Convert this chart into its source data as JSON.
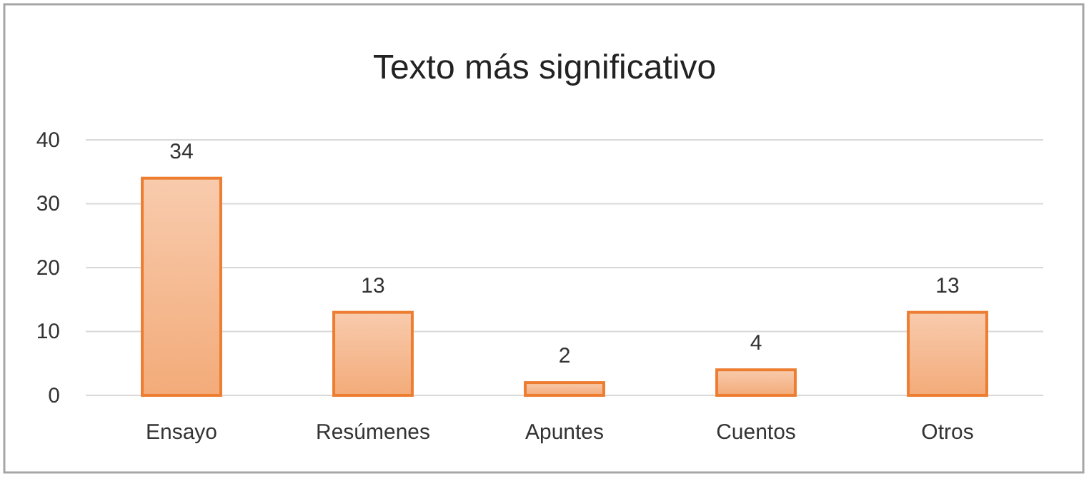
{
  "chart_data": {
    "type": "bar",
    "title": "Texto más significativo",
    "categories": [
      "Ensayo",
      "Resúmenes",
      "Apuntes",
      "Cuentos",
      "Otros"
    ],
    "values": [
      34,
      13,
      2,
      4,
      13
    ],
    "color": "#ed7d31",
    "ylim": [
      0,
      40
    ],
    "yticks": [
      0,
      10,
      20,
      30,
      40
    ],
    "grid": "y",
    "data_labels": true
  }
}
